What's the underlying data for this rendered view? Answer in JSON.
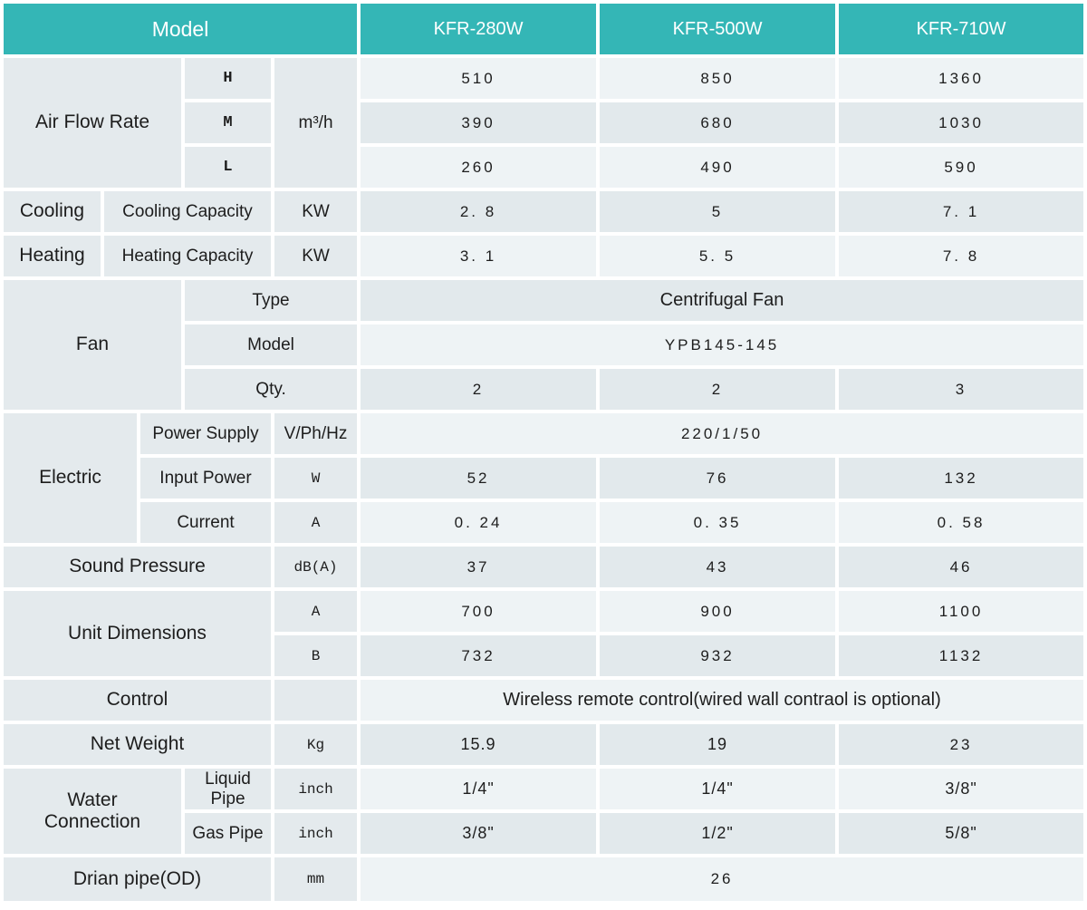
{
  "title": "Air conditioner model specification table",
  "colors": {
    "header_teal": "#34b6b6",
    "label_cell_bg": "#e4eaed",
    "row_light_bg": "#eef3f5",
    "row_dark_bg": "#e2e9ec",
    "grid_white": "#ffffff",
    "text": "#1d1d1d",
    "header_text": "#ffffff"
  },
  "header": {
    "model_label": "Model",
    "models": [
      "KFR-280W",
      "KFR-500W",
      "KFR-710W"
    ]
  },
  "table": {
    "rows": [
      {
        "header": true,
        "cells": [
          {
            "t": "Model",
            "cs": 5,
            "n": "header-model"
          },
          {
            "t": "KFR-280W",
            "c": "mh2",
            "n": "header-kfr-280w"
          },
          {
            "t": "KFR-500W",
            "c": "mh2",
            "n": "header-kfr-500w"
          },
          {
            "t": "KFR-710W",
            "c": "mh2",
            "n": "header-kfr-710w"
          }
        ]
      },
      {
        "cells": [
          {
            "t": "Air Flow Rate",
            "cs": 3,
            "rs": 3,
            "c": "lbl",
            "n": "label-air-flow-rate"
          },
          {
            "t": "H",
            "c": "hml",
            "n": "label-speed-high"
          },
          {
            "t": "m³/h",
            "rs": 3,
            "c": "us",
            "n": "unit-airflow-m3h"
          },
          {
            "t": "510",
            "c": "v",
            "n": "airflow-high-kfr280w"
          },
          {
            "t": "850",
            "c": "v",
            "n": "airflow-high-kfr500w"
          },
          {
            "t": "1360",
            "c": "v",
            "n": "airflow-high-kfr710w"
          }
        ]
      },
      {
        "cells": [
          {
            "t": "M",
            "c": "hml",
            "n": "label-speed-medium"
          },
          {
            "t": "390",
            "c": "v",
            "n": "airflow-medium-kfr280w"
          },
          {
            "t": "680",
            "c": "v",
            "n": "airflow-medium-kfr500w"
          },
          {
            "t": "1030",
            "c": "v",
            "n": "airflow-medium-kfr710w"
          }
        ]
      },
      {
        "cells": [
          {
            "t": "L",
            "c": "hml",
            "n": "label-speed-low"
          },
          {
            "t": "260",
            "c": "v",
            "n": "airflow-low-kfr280w"
          },
          {
            "t": "490",
            "c": "v",
            "n": "airflow-low-kfr500w"
          },
          {
            "t": "590",
            "c": "v",
            "n": "airflow-low-kfr710w"
          }
        ]
      },
      {
        "cells": [
          {
            "t": "Cooling",
            "c": "lbl",
            "n": "label-cooling"
          },
          {
            "t": "Cooling Capacity",
            "cs": 3,
            "c": "sub",
            "n": "label-cooling-capacity"
          },
          {
            "t": "KW",
            "c": "us",
            "n": "unit-cooling-kw"
          },
          {
            "t": "2. 8",
            "c": "v",
            "n": "cooling-capacity-kfr280w"
          },
          {
            "t": "5",
            "c": "v",
            "n": "cooling-capacity-kfr500w"
          },
          {
            "t": "7. 1",
            "c": "v",
            "n": "cooling-capacity-kfr710w"
          }
        ]
      },
      {
        "cells": [
          {
            "t": "Heating",
            "c": "lbl",
            "n": "label-heating"
          },
          {
            "t": "Heating Capacity",
            "cs": 3,
            "c": "sub",
            "n": "label-heating-capacity"
          },
          {
            "t": "KW",
            "c": "us",
            "n": "unit-heating-kw"
          },
          {
            "t": "3. 1",
            "c": "v",
            "n": "heating-capacity-kfr280w"
          },
          {
            "t": "5. 5",
            "c": "v",
            "n": "heating-capacity-kfr500w"
          },
          {
            "t": "7. 8",
            "c": "v",
            "n": "heating-capacity-kfr710w"
          }
        ]
      },
      {
        "cells": [
          {
            "t": "Fan",
            "cs": 3,
            "rs": 3,
            "c": "lbl",
            "n": "label-fan"
          },
          {
            "t": "Type",
            "cs": 2,
            "c": "sub",
            "n": "label-fan-type"
          },
          {
            "t": "Centrifugal Fan",
            "cs": 3,
            "c": "vt",
            "n": "fan-type-all-models"
          }
        ]
      },
      {
        "cells": [
          {
            "t": "Model",
            "cs": 2,
            "c": "sub",
            "n": "label-fan-model"
          },
          {
            "t": "YPB145-145",
            "cs": 3,
            "c": "v",
            "n": "fan-model-all-models"
          }
        ]
      },
      {
        "cells": [
          {
            "t": "Qty.",
            "cs": 2,
            "c": "sub",
            "n": "label-fan-qty"
          },
          {
            "t": "2",
            "c": "v",
            "n": "fan-qty-kfr280w"
          },
          {
            "t": "2",
            "c": "v",
            "n": "fan-qty-kfr500w"
          },
          {
            "t": "3",
            "c": "v",
            "n": "fan-qty-kfr710w"
          }
        ]
      },
      {
        "cells": [
          {
            "t": "Electric",
            "cs": 2,
            "rs": 3,
            "c": "lbl",
            "n": "label-electric"
          },
          {
            "t": "Power Supply",
            "cs": 2,
            "c": "sub",
            "n": "label-power-supply"
          },
          {
            "t": "V/Ph/Hz",
            "c": "us",
            "n": "unit-power-supply"
          },
          {
            "t": "220/1/50",
            "cs": 3,
            "c": "v",
            "n": "power-supply-all-models"
          }
        ]
      },
      {
        "cells": [
          {
            "t": "Input Power",
            "cs": 2,
            "c": "sub",
            "n": "label-input-power"
          },
          {
            "t": "W",
            "c": "um",
            "n": "unit-input-power-w"
          },
          {
            "t": "52",
            "c": "v",
            "n": "input-power-kfr280w"
          },
          {
            "t": "76",
            "c": "v",
            "n": "input-power-kfr500w"
          },
          {
            "t": "132",
            "c": "v",
            "n": "input-power-kfr710w"
          }
        ]
      },
      {
        "cells": [
          {
            "t": "Current",
            "cs": 2,
            "c": "sub",
            "n": "label-current"
          },
          {
            "t": "A",
            "c": "um",
            "n": "unit-current-a"
          },
          {
            "t": "0. 24",
            "c": "v",
            "n": "current-kfr280w"
          },
          {
            "t": "0. 35",
            "c": "v",
            "n": "current-kfr500w"
          },
          {
            "t": "0. 58",
            "c": "v",
            "n": "current-kfr710w"
          }
        ]
      },
      {
        "cells": [
          {
            "t": "Sound Pressure",
            "cs": 4,
            "c": "lbl",
            "n": "label-sound-pressure"
          },
          {
            "t": "dB(A)",
            "c": "um",
            "n": "unit-sound-dba"
          },
          {
            "t": "37",
            "c": "v",
            "n": "sound-pressure-kfr280w"
          },
          {
            "t": "43",
            "c": "v",
            "n": "sound-pressure-kfr500w"
          },
          {
            "t": "46",
            "c": "v",
            "n": "sound-pressure-kfr710w"
          }
        ]
      },
      {
        "cells": [
          {
            "t": "Unit Dimensions",
            "cs": 4,
            "rs": 2,
            "c": "lbl",
            "n": "label-unit-dimensions"
          },
          {
            "t": "A",
            "c": "um",
            "n": "label-dimension-a"
          },
          {
            "t": "700",
            "c": "v",
            "n": "dimension-a-kfr280w"
          },
          {
            "t": "900",
            "c": "v",
            "n": "dimension-a-kfr500w"
          },
          {
            "t": "1100",
            "c": "v",
            "n": "dimension-a-kfr710w"
          }
        ]
      },
      {
        "cells": [
          {
            "t": "B",
            "c": "um",
            "n": "label-dimension-b"
          },
          {
            "t": "732",
            "c": "v",
            "n": "dimension-b-kfr280w"
          },
          {
            "t": "932",
            "c": "v",
            "n": "dimension-b-kfr500w"
          },
          {
            "t": "1132",
            "c": "v",
            "n": "dimension-b-kfr710w"
          }
        ]
      },
      {
        "cells": [
          {
            "t": "Control",
            "cs": 4,
            "c": "lbl",
            "n": "label-control"
          },
          {
            "t": "",
            "c": "us",
            "n": "unit-control-empty"
          },
          {
            "t": "Wireless remote control(wired wall contraol is optional)",
            "cs": 3,
            "c": "vt",
            "n": "control-all-models"
          }
        ]
      },
      {
        "cells": [
          {
            "t": "Net Weight",
            "cs": 4,
            "c": "lbl",
            "n": "label-net-weight"
          },
          {
            "t": "Kg",
            "c": "um",
            "n": "unit-net-weight-kg"
          },
          {
            "t": "15.9",
            "c": "vp",
            "n": "net-weight-kfr280w"
          },
          {
            "t": "19",
            "c": "vp",
            "n": "net-weight-kfr500w"
          },
          {
            "t": "23",
            "c": "v",
            "n": "net-weight-kfr710w"
          }
        ]
      },
      {
        "cells": [
          {
            "t": "Water\nConnection",
            "cs": 3,
            "rs": 2,
            "c": "lbl",
            "n": "label-water-connection"
          },
          {
            "t": "Liquid Pipe",
            "c": "sub",
            "n": "label-liquid-pipe"
          },
          {
            "t": "inch",
            "c": "um",
            "n": "unit-liquid-pipe-inch"
          },
          {
            "t": "1/4\"",
            "c": "vp",
            "n": "liquid-pipe-kfr280w"
          },
          {
            "t": "1/4\"",
            "c": "vp",
            "n": "liquid-pipe-kfr500w"
          },
          {
            "t": "3/8\"",
            "c": "vp",
            "n": "liquid-pipe-kfr710w"
          }
        ]
      },
      {
        "cells": [
          {
            "t": "Gas Pipe",
            "c": "sub",
            "n": "label-gas-pipe"
          },
          {
            "t": "inch",
            "c": "um",
            "n": "unit-gas-pipe-inch"
          },
          {
            "t": "3/8\"",
            "c": "vp",
            "n": "gas-pipe-kfr280w"
          },
          {
            "t": "1/2\"",
            "c": "vp",
            "n": "gas-pipe-kfr500w"
          },
          {
            "t": "5/8\"",
            "c": "vp",
            "n": "gas-pipe-kfr710w"
          }
        ]
      },
      {
        "cells": [
          {
            "t": "Drian pipe(OD)",
            "cs": 4,
            "c": "lbl",
            "n": "label-drain-pipe-od"
          },
          {
            "t": "mm",
            "c": "um",
            "n": "unit-drain-pipe-mm"
          },
          {
            "t": "26",
            "cs": 3,
            "c": "v",
            "n": "drain-pipe-all-models"
          }
        ]
      }
    ]
  }
}
